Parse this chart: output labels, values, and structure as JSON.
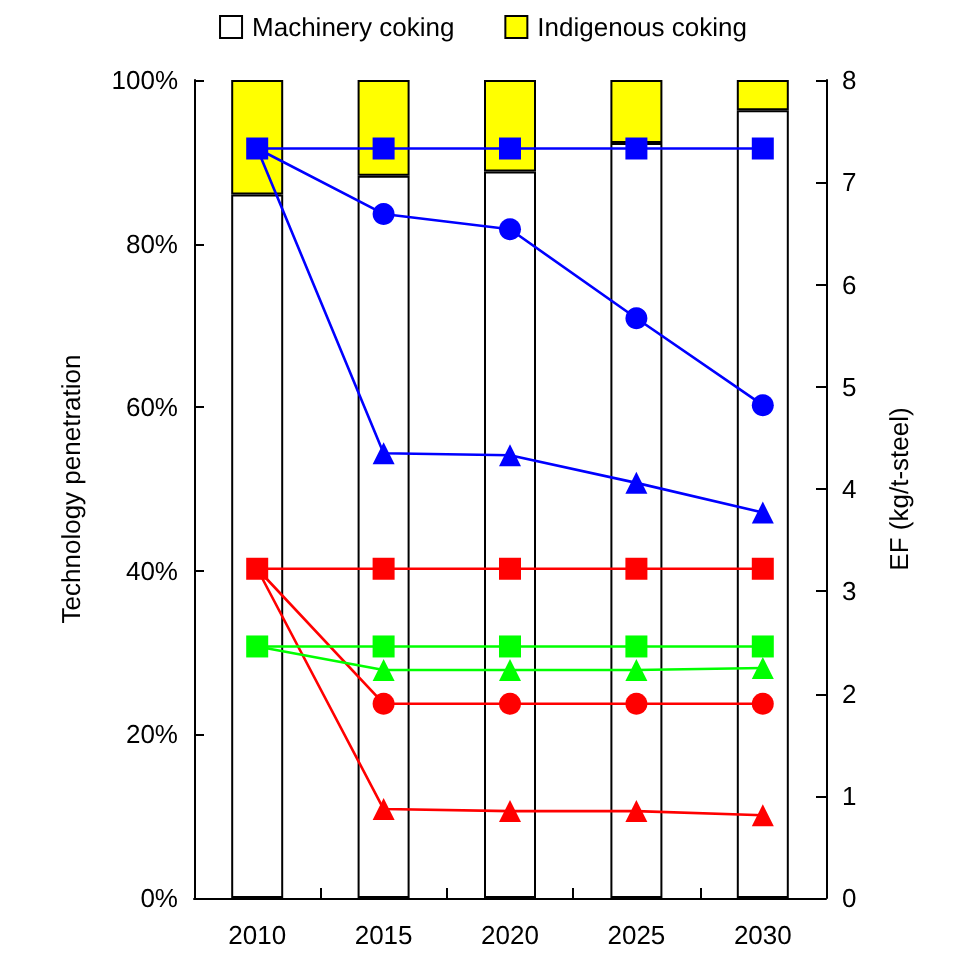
{
  "chart_data": {
    "type": "bar",
    "stacked": true,
    "ylabel": "Technology penetration",
    "y2label": "EF (kg/t-steel)",
    "categories": [
      "2010",
      "2015",
      "2020",
      "2025",
      "2030"
    ],
    "ylim": [
      0,
      100
    ],
    "yticks": [
      {
        "value": 0,
        "label": "0%"
      },
      {
        "value": 20,
        "label": "20%"
      },
      {
        "value": 40,
        "label": "40%"
      },
      {
        "value": 60,
        "label": "60%"
      },
      {
        "value": 80,
        "label": "80%"
      },
      {
        "value": 100,
        "label": "100%"
      }
    ],
    "y2lim": [
      0,
      8
    ],
    "y2ticks": [
      0,
      1,
      2,
      3,
      4,
      5,
      6,
      7,
      8
    ],
    "legend": "top",
    "grid": false,
    "series": [
      {
        "name": "Machinery coking",
        "color": "#ffffff",
        "values": [
          86,
          88.3,
          88.8,
          92.3,
          96.3
        ]
      },
      {
        "name": "Indigenous coking",
        "color": "#ffff00",
        "values": [
          14,
          11.7,
          11.2,
          7.7,
          3.7
        ]
      },
      {
        "type": "line",
        "axis": "y2",
        "marker": "square",
        "color": "#0000ff",
        "values": [
          7.33,
          7.33,
          7.33,
          7.33,
          7.33
        ]
      },
      {
        "type": "line",
        "axis": "y2",
        "marker": "circle",
        "color": "#0000ff",
        "values": [
          7.33,
          6.69,
          6.54,
          5.67,
          4.82
        ]
      },
      {
        "type": "line",
        "axis": "y2",
        "marker": "triangle",
        "color": "#0000ff",
        "values": [
          7.33,
          4.35,
          4.33,
          4.06,
          3.77
        ]
      },
      {
        "type": "line",
        "axis": "y2",
        "marker": "square",
        "color": "#ff0000",
        "values": [
          3.22,
          3.22,
          3.22,
          3.22,
          3.22
        ]
      },
      {
        "type": "line",
        "axis": "y2",
        "marker": "circle",
        "color": "#ff0000",
        "values": [
          3.22,
          1.9,
          1.9,
          1.9,
          1.9
        ]
      },
      {
        "type": "line",
        "axis": "y2",
        "marker": "triangle",
        "color": "#ff0000",
        "values": [
          3.22,
          0.87,
          0.85,
          0.85,
          0.81
        ]
      },
      {
        "type": "line",
        "axis": "y2",
        "marker": "square",
        "color": "#00ff00",
        "values": [
          2.46,
          2.46,
          2.46,
          2.46,
          2.46
        ]
      },
      {
        "type": "line",
        "axis": "y2",
        "marker": "triangle",
        "color": "#00ff00",
        "values": [
          2.46,
          2.23,
          2.23,
          2.23,
          2.25
        ]
      }
    ]
  }
}
